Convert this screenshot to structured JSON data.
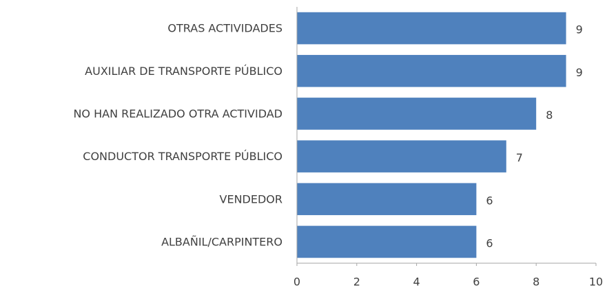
{
  "chart_data": {
    "type": "bar",
    "orientation": "horizontal",
    "categories": [
      "OTRAS ACTIVIDADES",
      "AUXILIAR DE TRANSPORTE PÚBLICO",
      "NO HAN REALIZADO OTRA ACTIVIDAD",
      "CONDUCTOR TRANSPORTE PÚBLICO",
      "VENDEDOR",
      "ALBAÑIL/CARPINTERO"
    ],
    "values": [
      9,
      9,
      8,
      7,
      6,
      6
    ],
    "color": "#4f81bd",
    "xlim": [
      0,
      10
    ],
    "xticks": [
      0,
      2,
      4,
      6,
      8,
      10
    ],
    "grid": false
  }
}
